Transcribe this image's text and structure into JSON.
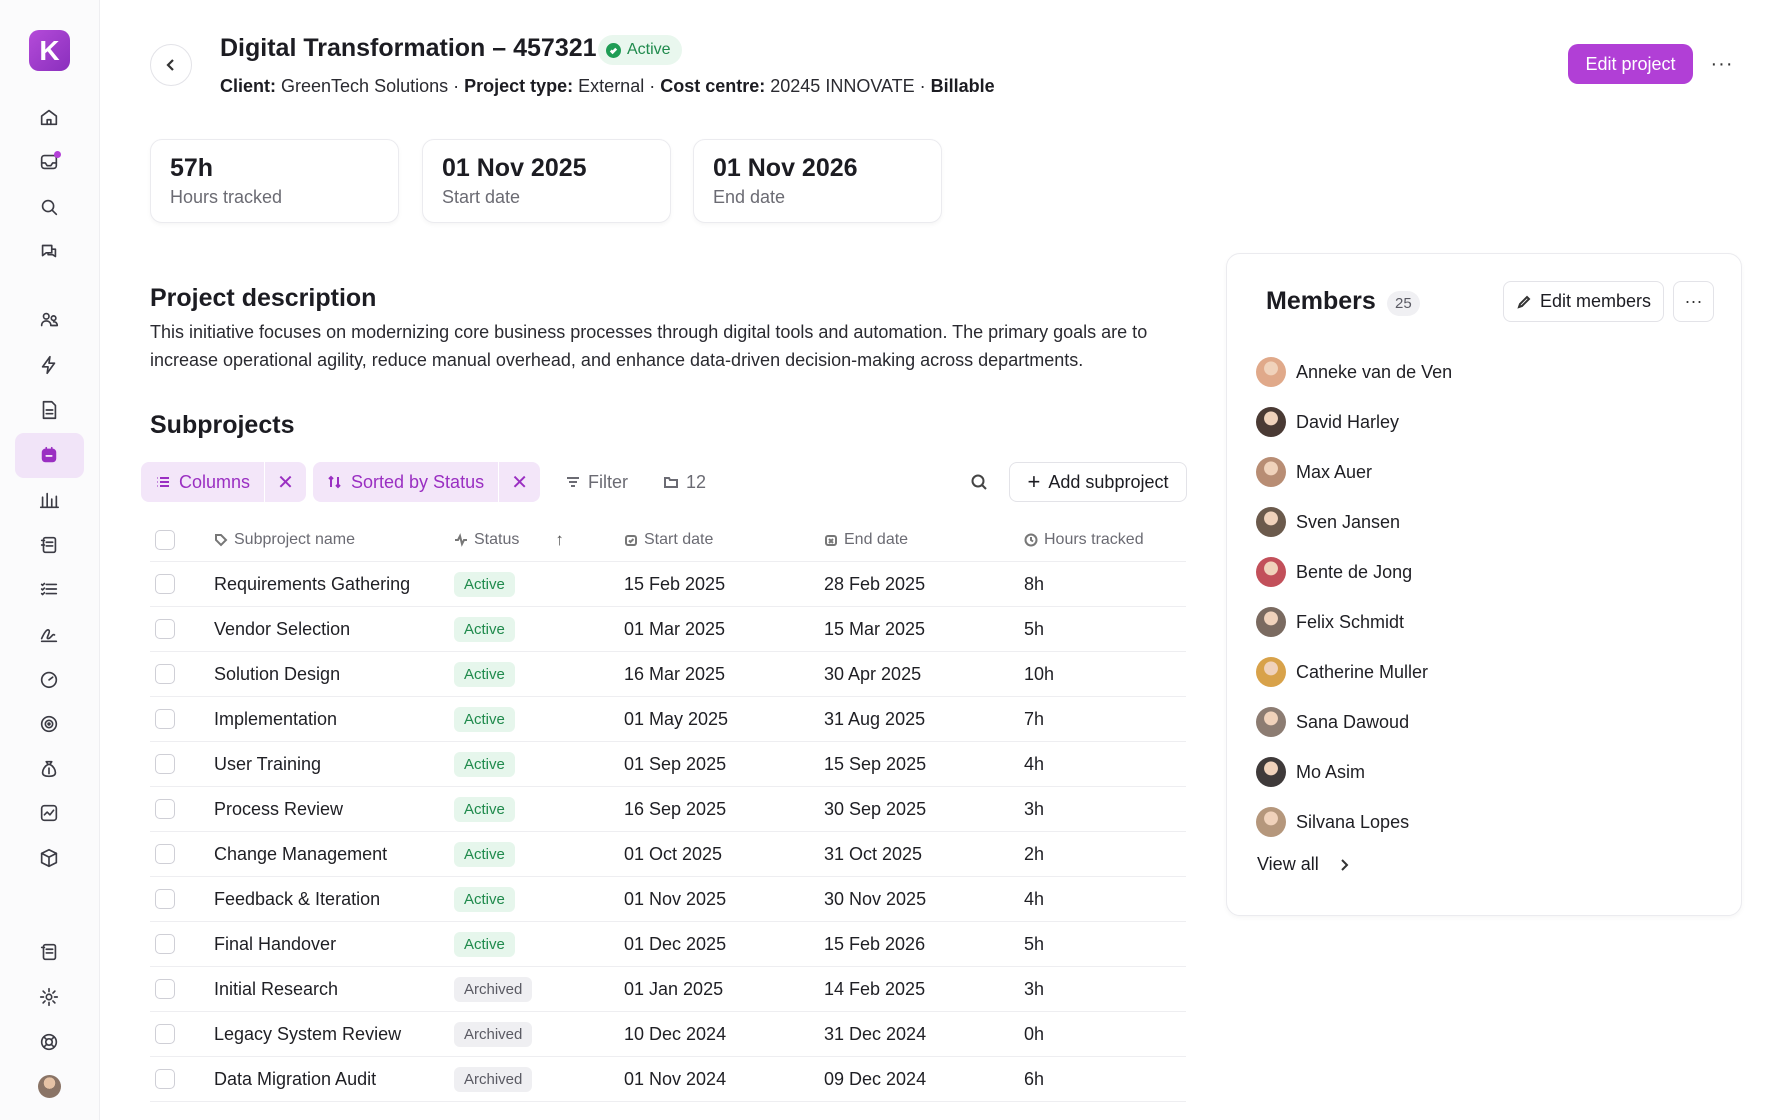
{
  "app": {
    "logo_letter": "K",
    "accent": "#b13fd6"
  },
  "header": {
    "title": "Digital Transformation – 457321",
    "status": "Active",
    "meta": {
      "client_label": "Client:",
      "client": "GreenTech Solutions",
      "type_label": "Project type:",
      "type": "External",
      "cost_label": "Cost centre:",
      "cost": "20245 INNOVATE",
      "billable": "Billable",
      "sep": " · "
    },
    "edit_button": "Edit project",
    "more": "···"
  },
  "stats": [
    {
      "value": "57h",
      "label": "Hours tracked"
    },
    {
      "value": "01 Nov 2025",
      "label": "Start date"
    },
    {
      "value": "01 Nov 2026",
      "label": "End date"
    }
  ],
  "description": {
    "title": "Project description",
    "text": "This initiative focuses on modernizing core business processes through digital tools and automation. The primary goals are to increase operational agility, reduce manual overhead, and enhance data-driven decision-making across departments."
  },
  "subprojects": {
    "title": "Subprojects",
    "toolbar": {
      "columns": "Columns",
      "sorted": "Sorted by Status",
      "filter": "Filter",
      "count": "12",
      "add": "Add subproject"
    },
    "columns": [
      "Subproject name",
      "Status",
      "Start date",
      "End date",
      "Hours tracked"
    ],
    "rows": [
      {
        "name": "Requirements Gathering",
        "status": "Active",
        "start": "15 Feb 2025",
        "end": "28 Feb 2025",
        "hours": "8h"
      },
      {
        "name": "Vendor Selection",
        "status": "Active",
        "start": "01 Mar 2025",
        "end": "15 Mar 2025",
        "hours": "5h"
      },
      {
        "name": "Solution Design",
        "status": "Active",
        "start": "16 Mar 2025",
        "end": "30 Apr 2025",
        "hours": "10h"
      },
      {
        "name": "Implementation",
        "status": "Active",
        "start": "01 May 2025",
        "end": "31 Aug 2025",
        "hours": "7h"
      },
      {
        "name": "User Training",
        "status": "Active",
        "start": "01 Sep 2025",
        "end": "15 Sep 2025",
        "hours": "4h"
      },
      {
        "name": "Process Review",
        "status": "Active",
        "start": "16 Sep 2025",
        "end": "30 Sep 2025",
        "hours": "3h"
      },
      {
        "name": "Change Management",
        "status": "Active",
        "start": "01 Oct 2025",
        "end": "31 Oct 2025",
        "hours": "2h"
      },
      {
        "name": "Feedback & Iteration",
        "status": "Active",
        "start": "01 Nov 2025",
        "end": "30 Nov 2025",
        "hours": "4h"
      },
      {
        "name": "Final Handover",
        "status": "Active",
        "start": "01 Dec 2025",
        "end": "15 Feb 2026",
        "hours": "5h"
      },
      {
        "name": "Initial Research",
        "status": "Archived",
        "start": "01 Jan 2025",
        "end": "14 Feb 2025",
        "hours": "3h"
      },
      {
        "name": "Legacy System Review",
        "status": "Archived",
        "start": "10 Dec 2024",
        "end": "31 Dec 2024",
        "hours": "0h"
      },
      {
        "name": "Data Migration Audit",
        "status": "Archived",
        "start": "01 Nov 2024",
        "end": "09 Dec 2024",
        "hours": "6h"
      }
    ]
  },
  "members": {
    "title": "Members",
    "count": "25",
    "edit": "Edit members",
    "view_all": "View all",
    "list": [
      {
        "name": "Anneke van de Ven",
        "color": "#e0a98a"
      },
      {
        "name": "David Harley",
        "color": "#4a3a34"
      },
      {
        "name": "Max Auer",
        "color": "#b88d74"
      },
      {
        "name": "Sven Jansen",
        "color": "#6b5a4c"
      },
      {
        "name": "Bente de Jong",
        "color": "#c2505a"
      },
      {
        "name": "Felix Schmidt",
        "color": "#7a6a60"
      },
      {
        "name": "Catherine Muller",
        "color": "#d8a24a"
      },
      {
        "name": "Sana Dawoud",
        "color": "#8c7c72"
      },
      {
        "name": "Mo Asim",
        "color": "#3f3a3a"
      },
      {
        "name": "Silvana Lopes",
        "color": "#b5977c"
      }
    ]
  }
}
